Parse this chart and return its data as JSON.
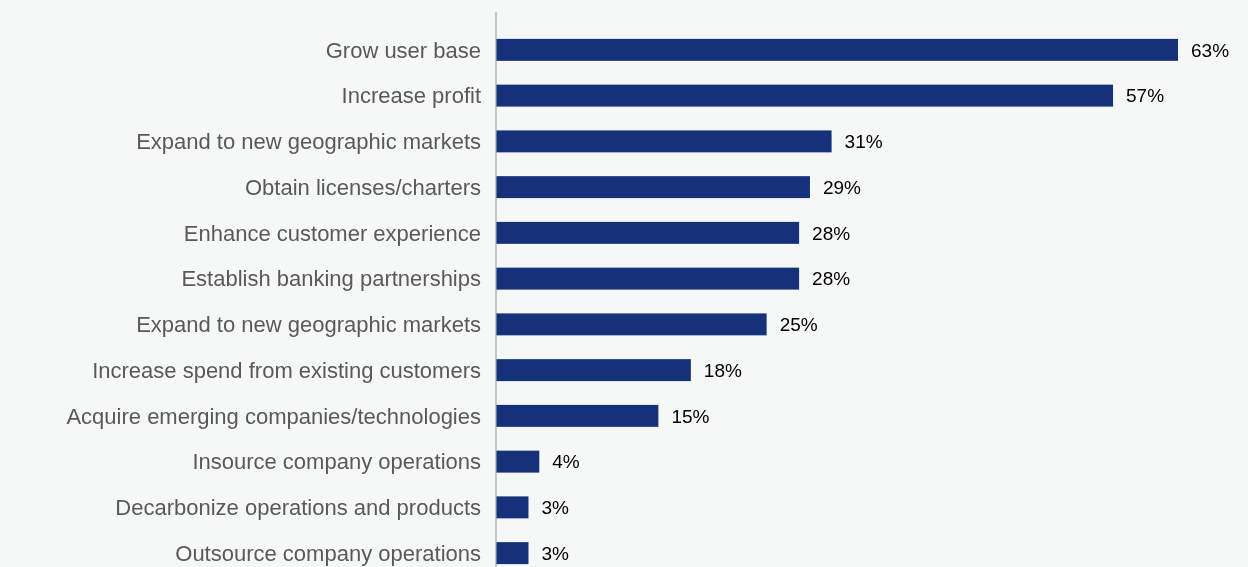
{
  "chart_data": {
    "type": "bar",
    "orientation": "horizontal",
    "categories": [
      "Grow user base",
      "Increase profit",
      "Expand to new geographic markets",
      "Obtain licenses/charters",
      "Enhance customer experience",
      "Establish banking partnerships",
      "Expand to new geographic markets",
      "Increase spend from existing customers",
      "Acquire emerging companies/technologies",
      "Insource company operations",
      "Decarbonize operations and products",
      "Outsource company operations"
    ],
    "values": [
      63,
      57,
      31,
      29,
      28,
      28,
      25,
      18,
      15,
      4,
      3,
      3
    ],
    "value_labels": [
      "63%",
      "57%",
      "31%",
      "29%",
      "28%",
      "28%",
      "25%",
      "18%",
      "15%",
      "4%",
      "3%",
      "3%"
    ],
    "color": "#14317a"
  }
}
